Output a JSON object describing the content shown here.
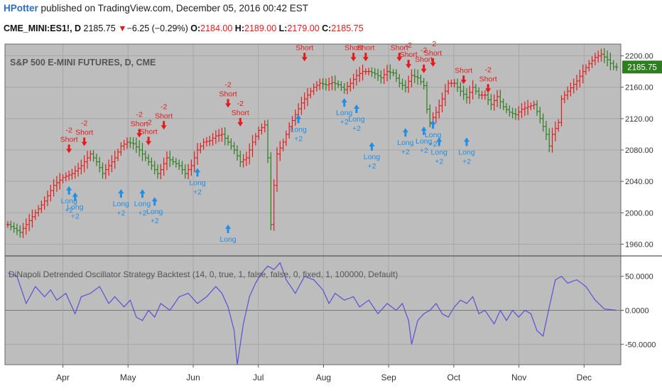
{
  "header": {
    "author": "HPotter",
    "published": "published on TradingView.com, December 05, 2016 00:42 EST",
    "symbol": "CME_MINI:ES1!, D",
    "price": "2185.75",
    "change_arrow": "▼",
    "change": "−6.25 (−0.29%)",
    "open_label": "O:",
    "open": "2184.00",
    "high_label": "H:",
    "high": "2189.00",
    "low_label": "L:",
    "low": "2179.00",
    "close_label": "C:",
    "close": "2185.75"
  },
  "colors": {
    "panel_bg": "#bdbdbd",
    "grid": "#a7a7a7",
    "up_bar": "#e21b1b",
    "down_bar": "#2e7d1e",
    "long_signal": "#1e8fe6",
    "short_signal": "#e21b1b",
    "oscillator": "#5a4fd4",
    "price_tag": "#2e7d1e"
  },
  "chart_data": [
    {
      "type": "candlestick",
      "title": "S&P 500 E-MINI FUTURES, D, CME",
      "ylim": [
        1945,
        2215
      ],
      "y_ticks": [
        1960,
        2000,
        2040,
        2080,
        2120,
        2160,
        2200
      ],
      "y_tick_labels": [
        "1960.00",
        "2000.00",
        "2040.00",
        "2080.00",
        "2120.00",
        "2160.00",
        "2200.00"
      ],
      "x_months": [
        "Apr",
        "May",
        "Jun",
        "Jul",
        "Aug",
        "Sep",
        "Oct",
        "Nov",
        "Dec"
      ],
      "last_price": 2185.75,
      "last_price_label": "2185.75",
      "grid": true,
      "price_anchors": [
        [
          0,
          1985
        ],
        [
          4,
          1975
        ],
        [
          8,
          1995
        ],
        [
          12,
          2015
        ],
        [
          15,
          2035
        ],
        [
          18,
          2045
        ],
        [
          21,
          2050
        ],
        [
          24,
          2060
        ],
        [
          27,
          2075
        ],
        [
          29,
          2065
        ],
        [
          31,
          2050
        ],
        [
          33,
          2060
        ],
        [
          35,
          2070
        ],
        [
          37,
          2085
        ],
        [
          39,
          2090
        ],
        [
          41,
          2088
        ],
        [
          43,
          2080
        ],
        [
          45,
          2070
        ],
        [
          47,
          2060
        ],
        [
          49,
          2050
        ],
        [
          50,
          2055
        ],
        [
          52,
          2070
        ],
        [
          54,
          2065
        ],
        [
          56,
          2060
        ],
        [
          58,
          2050
        ],
        [
          60,
          2060
        ],
        [
          62,
          2080
        ],
        [
          64,
          2090
        ],
        [
          66,
          2092
        ],
        [
          68,
          2098
        ],
        [
          70,
          2100
        ],
        [
          72,
          2090
        ],
        [
          74,
          2080
        ],
        [
          76,
          2065
        ],
        [
          78,
          2070
        ],
        [
          80,
          2090
        ],
        [
          82,
          2105
        ],
        [
          84,
          2112
        ],
        [
          85,
          2070
        ],
        [
          86,
          1985
        ],
        [
          87,
          2035
        ],
        [
          88,
          2075
        ],
        [
          90,
          2090
        ],
        [
          92,
          2110
        ],
        [
          94,
          2125
        ],
        [
          96,
          2140
        ],
        [
          98,
          2150
        ],
        [
          100,
          2160
        ],
        [
          102,
          2165
        ],
        [
          104,
          2163
        ],
        [
          106,
          2166
        ],
        [
          108,
          2163
        ],
        [
          110,
          2157
        ],
        [
          112,
          2165
        ],
        [
          114,
          2175
        ],
        [
          116,
          2180
        ],
        [
          118,
          2180
        ],
        [
          120,
          2177
        ],
        [
          122,
          2172
        ],
        [
          124,
          2180
        ],
        [
          126,
          2178
        ],
        [
          128,
          2165
        ],
        [
          130,
          2160
        ],
        [
          132,
          2175
        ],
        [
          134,
          2172
        ],
        [
          136,
          2162
        ],
        [
          137,
          2132
        ],
        [
          138,
          2115
        ],
        [
          140,
          2128
        ],
        [
          142,
          2145
        ],
        [
          144,
          2165
        ],
        [
          146,
          2165
        ],
        [
          148,
          2155
        ],
        [
          150,
          2147
        ],
        [
          152,
          2160
        ],
        [
          154,
          2150
        ],
        [
          156,
          2150
        ],
        [
          158,
          2138
        ],
        [
          160,
          2148
        ],
        [
          162,
          2135
        ],
        [
          164,
          2128
        ],
        [
          166,
          2125
        ],
        [
          168,
          2132
        ],
        [
          170,
          2135
        ],
        [
          172,
          2138
        ],
        [
          174,
          2120
        ],
        [
          176,
          2100
        ],
        [
          177,
          2085
        ],
        [
          178,
          2100
        ],
        [
          180,
          2115
        ],
        [
          181,
          2145
        ],
        [
          183,
          2155
        ],
        [
          186,
          2168
        ],
        [
          188,
          2180
        ],
        [
          190,
          2190
        ],
        [
          192,
          2198
        ],
        [
          194,
          2202
        ],
        [
          196,
          2195
        ],
        [
          198,
          2186
        ],
        [
          199,
          2185.75
        ]
      ],
      "signals": [
        {
          "type": "long",
          "labels": [
            "Long",
            "+2"
          ],
          "bar": 20,
          "price": 2034
        },
        {
          "type": "long",
          "labels": [
            "Long",
            "+2"
          ],
          "bar": 22,
          "price": 2026
        },
        {
          "type": "short",
          "labels": [
            "-2",
            "Short"
          ],
          "bar": 20,
          "price": 2076
        },
        {
          "type": "short",
          "labels": [
            "-2",
            "Short"
          ],
          "bar": 25,
          "price": 2085
        },
        {
          "type": "long",
          "labels": [
            "Long",
            "+2"
          ],
          "bar": 37,
          "price": 2030
        },
        {
          "type": "short",
          "labels": [
            "-2",
            "Short"
          ],
          "bar": 43,
          "price": 2096
        },
        {
          "type": "short",
          "labels": [
            "-2",
            "Short"
          ],
          "bar": 46,
          "price": 2086
        },
        {
          "type": "long",
          "labels": [
            "Long",
            "+2"
          ],
          "bar": 44,
          "price": 2030
        },
        {
          "type": "long",
          "labels": [
            "Long",
            "+2"
          ],
          "bar": 48,
          "price": 2020
        },
        {
          "type": "short",
          "labels": [
            "-2",
            "Short"
          ],
          "bar": 51,
          "price": 2106
        },
        {
          "type": "long",
          "labels": [
            "Long",
            "+2"
          ],
          "bar": 62,
          "price": 2057
        },
        {
          "type": "long",
          "labels": [
            "Long"
          ],
          "bar": 72,
          "price": 1985
        },
        {
          "type": "short",
          "labels": [
            "-2",
            "Short"
          ],
          "bar": 72,
          "price": 2134
        },
        {
          "type": "short",
          "labels": [
            "-2",
            "Short"
          ],
          "bar": 76,
          "price": 2110
        },
        {
          "type": "long",
          "labels": [
            "Long",
            "+2"
          ],
          "bar": 95,
          "price": 2125
        },
        {
          "type": "short",
          "labels": [
            "Short"
          ],
          "bar": 97,
          "price": 2193
        },
        {
          "type": "long",
          "labels": [
            "Long",
            "+2"
          ],
          "bar": 110,
          "price": 2146
        },
        {
          "type": "short",
          "labels": [
            "Short"
          ],
          "bar": 113,
          "price": 2193
        },
        {
          "type": "short",
          "labels": [
            "-2",
            "Short"
          ],
          "bar": 117,
          "price": 2193
        },
        {
          "type": "long",
          "labels": [
            "Long",
            "+2"
          ],
          "bar": 114,
          "price": 2138
        },
        {
          "type": "long",
          "labels": [
            "Long",
            "+2"
          ],
          "bar": 119,
          "price": 2090
        },
        {
          "type": "short",
          "labels": [
            "-2",
            "Short"
          ],
          "bar": 128,
          "price": 2193
        },
        {
          "type": "short",
          "labels": [
            "-2",
            "Short"
          ],
          "bar": 131,
          "price": 2184
        },
        {
          "type": "long",
          "labels": [
            "Long",
            "+2"
          ],
          "bar": 130,
          "price": 2108
        },
        {
          "type": "short",
          "labels": [
            "-2",
            "Short"
          ],
          "bar": 136,
          "price": 2178
        },
        {
          "type": "short",
          "labels": [
            "-2",
            "Short"
          ],
          "bar": 139,
          "price": 2186
        },
        {
          "type": "long",
          "labels": [
            "Long",
            "+2"
          ],
          "bar": 136,
          "price": 2110
        },
        {
          "type": "long",
          "labels": [
            "Long",
            "+2"
          ],
          "bar": 139,
          "price": 2118
        },
        {
          "type": "long",
          "labels": [
            "Long",
            "+2"
          ],
          "bar": 141,
          "price": 2096
        },
        {
          "type": "short",
          "labels": [
            "Short"
          ],
          "bar": 149,
          "price": 2164
        },
        {
          "type": "long",
          "labels": [
            "Long",
            "+2"
          ],
          "bar": 150,
          "price": 2096
        },
        {
          "type": "short",
          "labels": [
            "-2",
            "Short"
          ],
          "bar": 157,
          "price": 2153
        }
      ]
    },
    {
      "type": "line",
      "title": "DiNapoli Detrended Oscillator Strategy Backtest (14, 0, true, 1, false, false, 0, fixed, 1, 100000, Default)",
      "ylim": [
        -80,
        80
      ],
      "y_ticks": [
        50,
        0,
        -50
      ],
      "y_tick_labels": [
        "50.0000",
        "0.0000",
        "-50.0000"
      ],
      "zero_line": 0,
      "grid": true,
      "oscillator_anchors": [
        [
          0,
          55
        ],
        [
          3,
          50
        ],
        [
          6,
          10
        ],
        [
          9,
          35
        ],
        [
          12,
          20
        ],
        [
          14,
          30
        ],
        [
          16,
          15
        ],
        [
          19,
          25
        ],
        [
          22,
          -5
        ],
        [
          24,
          20
        ],
        [
          27,
          25
        ],
        [
          30,
          35
        ],
        [
          33,
          10
        ],
        [
          35,
          20
        ],
        [
          38,
          5
        ],
        [
          40,
          15
        ],
        [
          42,
          -10
        ],
        [
          44,
          -15
        ],
        [
          46,
          0
        ],
        [
          48,
          -10
        ],
        [
          50,
          10
        ],
        [
          53,
          0
        ],
        [
          56,
          20
        ],
        [
          59,
          25
        ],
        [
          62,
          10
        ],
        [
          65,
          20
        ],
        [
          68,
          35
        ],
        [
          70,
          25
        ],
        [
          72,
          5
        ],
        [
          74,
          -30
        ],
        [
          75,
          -80
        ],
        [
          77,
          -20
        ],
        [
          79,
          20
        ],
        [
          81,
          40
        ],
        [
          83,
          55
        ],
        [
          85,
          65
        ],
        [
          87,
          60
        ],
        [
          89,
          70
        ],
        [
          91,
          45
        ],
        [
          94,
          25
        ],
        [
          97,
          50
        ],
        [
          100,
          45
        ],
        [
          103,
          30
        ],
        [
          105,
          10
        ],
        [
          107,
          25
        ],
        [
          110,
          15
        ],
        [
          113,
          20
        ],
        [
          115,
          5
        ],
        [
          118,
          15
        ],
        [
          121,
          -5
        ],
        [
          124,
          10
        ],
        [
          127,
          0
        ],
        [
          129,
          10
        ],
        [
          131,
          -15
        ],
        [
          132,
          -50
        ],
        [
          134,
          -15
        ],
        [
          136,
          -5
        ],
        [
          138,
          0
        ],
        [
          140,
          10
        ],
        [
          142,
          -5
        ],
        [
          144,
          -10
        ],
        [
          146,
          5
        ],
        [
          148,
          15
        ],
        [
          150,
          10
        ],
        [
          152,
          20
        ],
        [
          154,
          -5
        ],
        [
          156,
          0
        ],
        [
          159,
          -20
        ],
        [
          161,
          0
        ],
        [
          163,
          -15
        ],
        [
          165,
          0
        ],
        [
          167,
          -10
        ],
        [
          169,
          0
        ],
        [
          171,
          -5
        ],
        [
          173,
          -30
        ],
        [
          175,
          -38
        ],
        [
          177,
          5
        ],
        [
          179,
          45
        ],
        [
          181,
          50
        ],
        [
          183,
          40
        ],
        [
          186,
          45
        ],
        [
          189,
          35
        ],
        [
          192,
          15
        ],
        [
          195,
          2
        ],
        [
          199,
          0
        ]
      ]
    }
  ]
}
